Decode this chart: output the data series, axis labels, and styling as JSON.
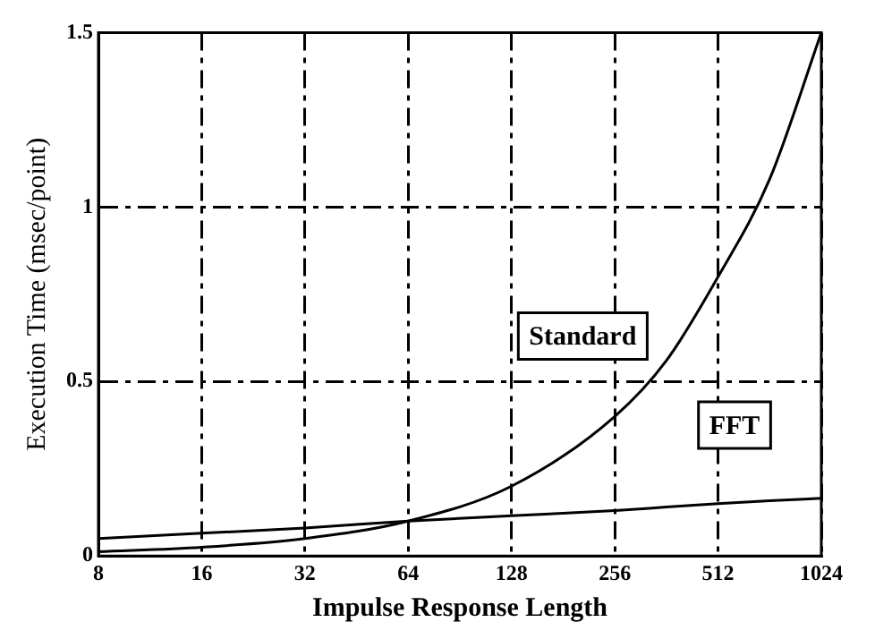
{
  "chart_data": {
    "type": "line",
    "xlabel": "Impulse Response Length",
    "ylabel": "Execution Time (msec/point)",
    "x": [
      8,
      16,
      32,
      64,
      128,
      256,
      362,
      512,
      724,
      1024
    ],
    "series": [
      {
        "name": "Standard",
        "color": "#000000",
        "values": [
          0.012,
          0.025,
          0.05,
          0.1,
          0.2,
          0.4,
          0.56,
          0.8,
          1.08,
          1.5
        ]
      },
      {
        "name": "FFT",
        "color": "#000000",
        "values": [
          0.05,
          0.065,
          0.08,
          0.1,
          0.115,
          0.13,
          0.14,
          0.15,
          0.158,
          0.165
        ]
      }
    ],
    "log": "x",
    "xlim": [
      8,
      1024
    ],
    "xticks": [
      8,
      16,
      32,
      64,
      128,
      256,
      512,
      1024
    ],
    "ylim": [
      0,
      1.5
    ],
    "yticks": [
      0,
      0.5,
      1,
      1.5
    ],
    "grid": true,
    "legend": false,
    "marker": "none",
    "line_style": "solid"
  }
}
